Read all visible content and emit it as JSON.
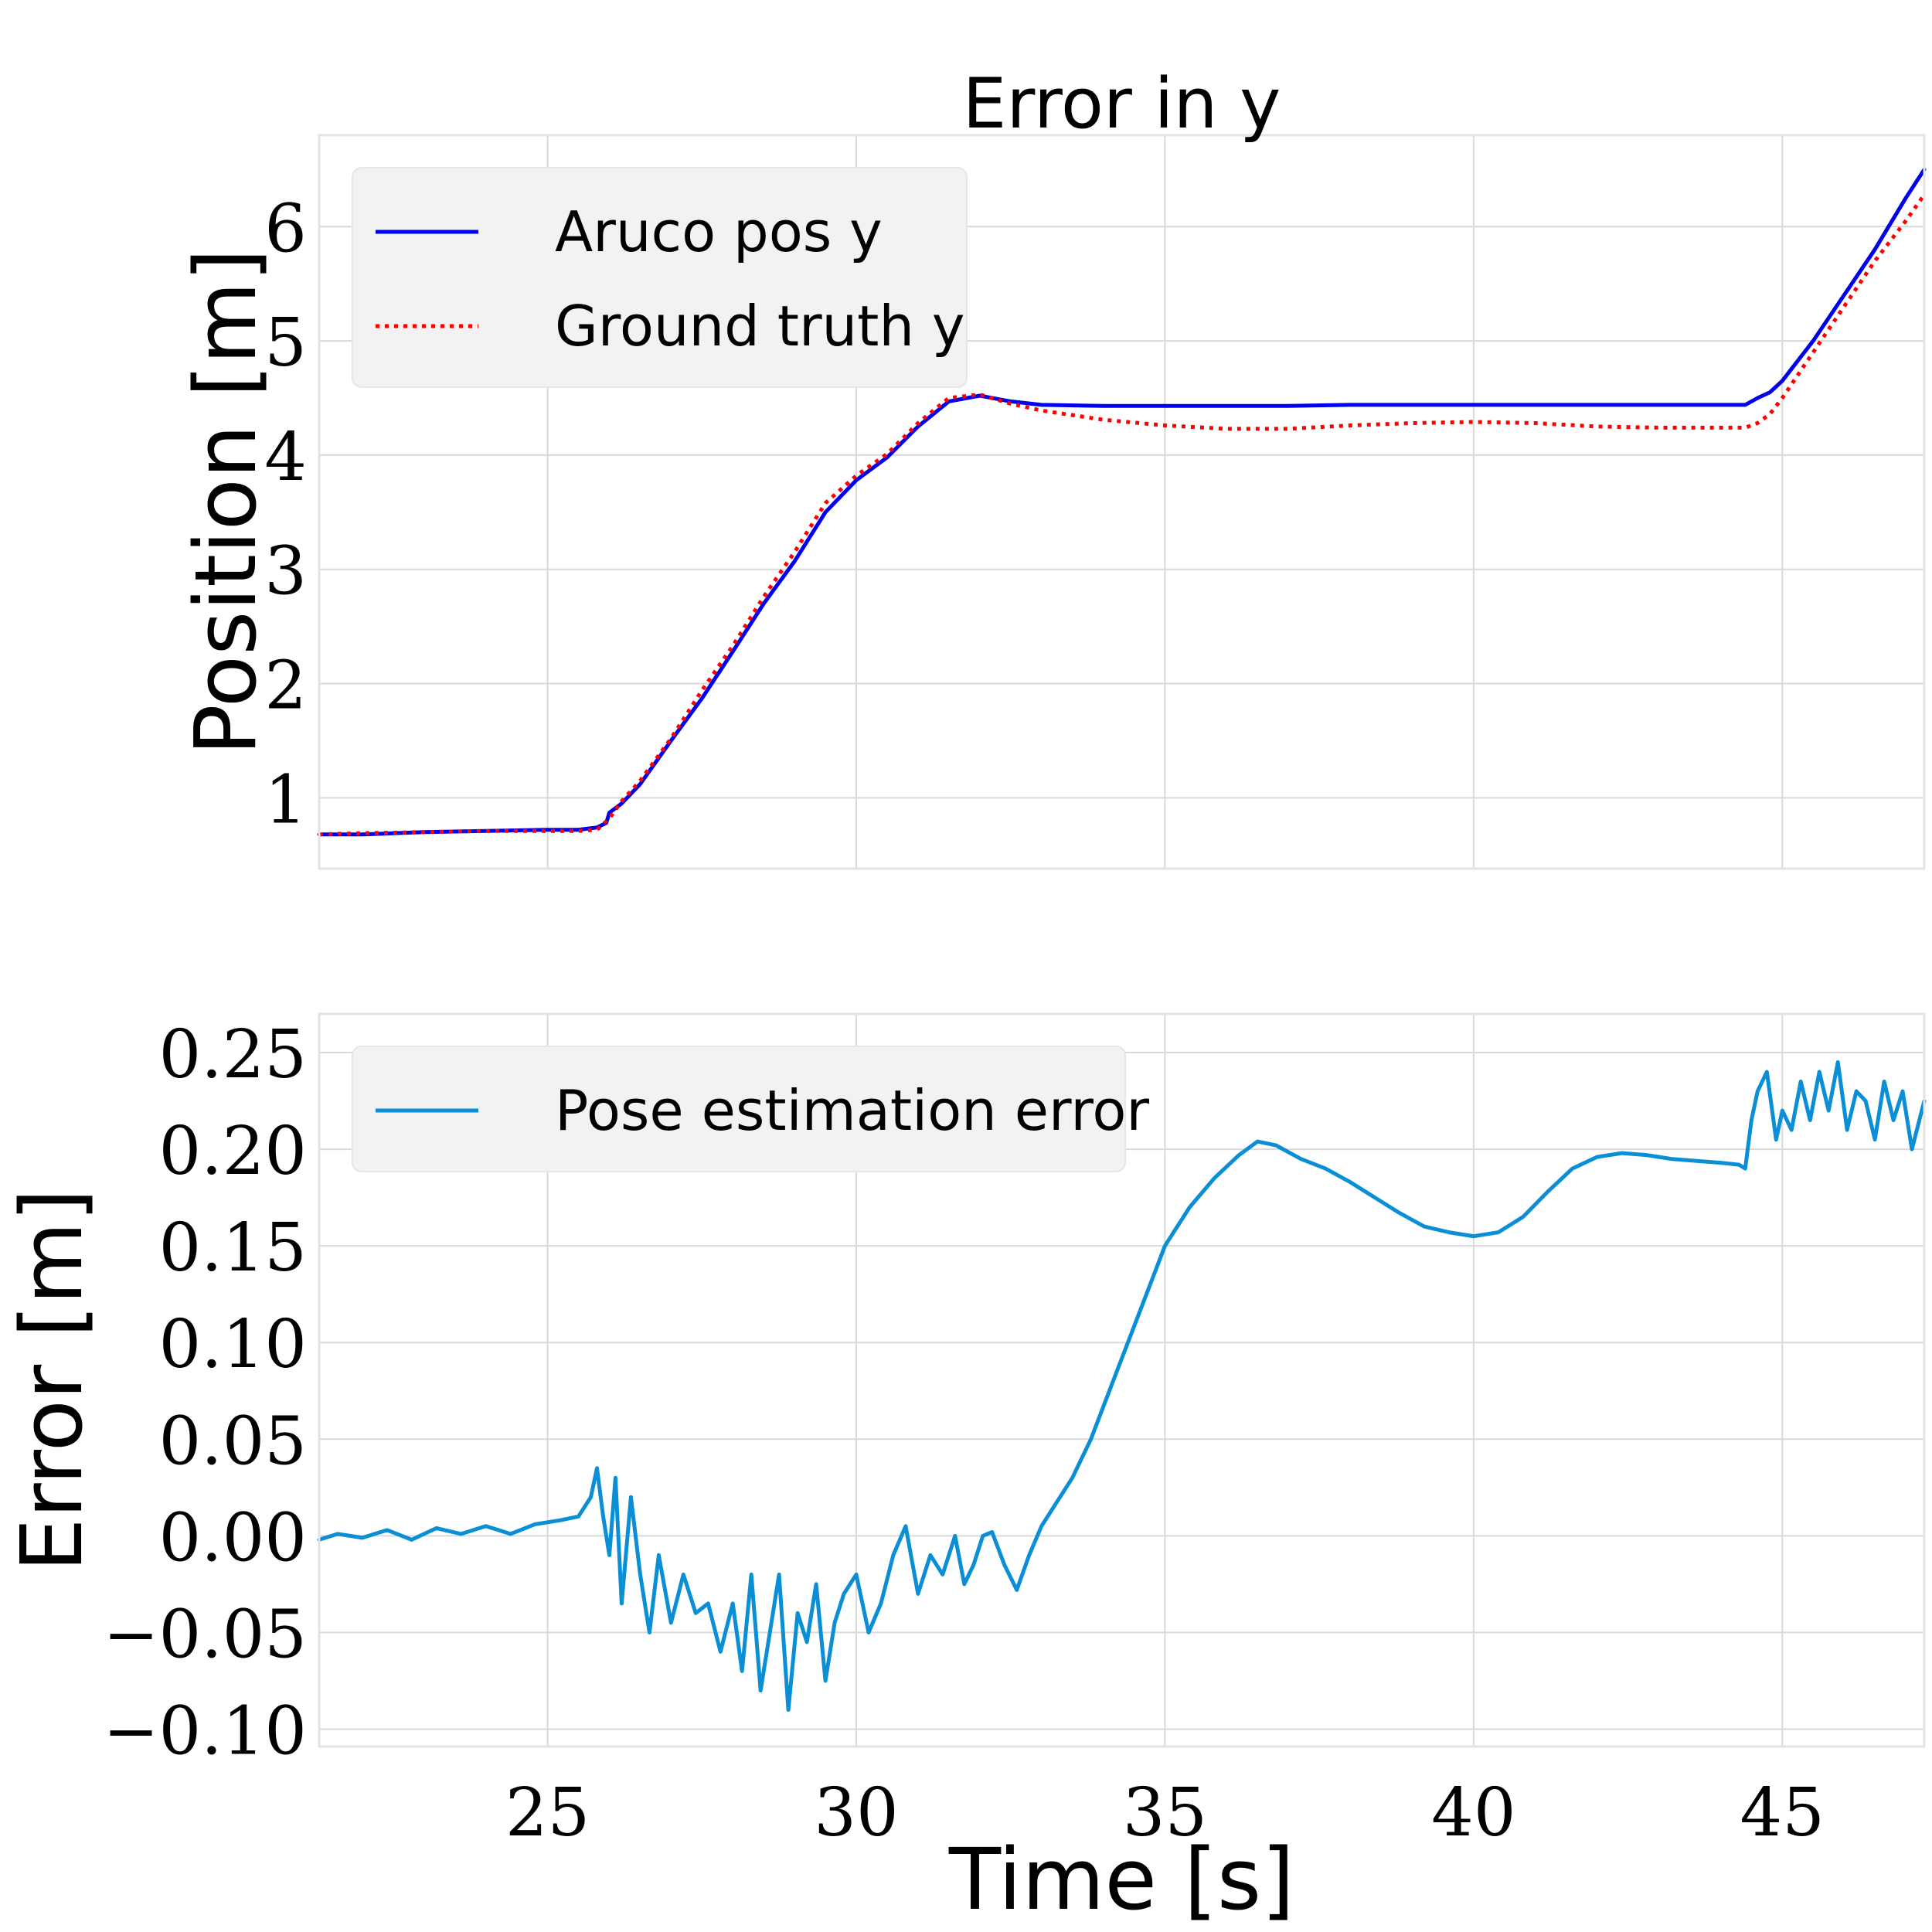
{
  "chart_data": [
    {
      "type": "line",
      "title": "Error in y",
      "xlabel": "",
      "ylabel": "Position [m]",
      "xlim": [
        21.3,
        47.3
      ],
      "ylim": [
        0.38,
        6.8
      ],
      "xticks": [
        25,
        30,
        35,
        40,
        45
      ],
      "yticks": [
        1,
        2,
        3,
        4,
        5,
        6
      ],
      "ytick_labels": [
        "1",
        "2",
        "3",
        "4",
        "5",
        "6"
      ],
      "grid": true,
      "legend": "top-left",
      "series": [
        {
          "name": "Aruco pos y",
          "color": "#0000ee",
          "style": "solid",
          "x": [
            21.3,
            22,
            23,
            24,
            25,
            25.5,
            25.8,
            25.95,
            26.0,
            26.2,
            26.5,
            27.0,
            27.5,
            28.0,
            28.5,
            29.0,
            29.5,
            30.0,
            30.5,
            31.0,
            31.5,
            32.0,
            32.5,
            33.0,
            34.0,
            35.0,
            36.0,
            37.0,
            38.0,
            39.0,
            40.0,
            41.0,
            42.0,
            43.0,
            44.0,
            44.4,
            44.6,
            44.8,
            45.0,
            45.5,
            46.0,
            46.5,
            47.0,
            47.3
          ],
          "values": [
            0.68,
            0.68,
            0.7,
            0.71,
            0.72,
            0.72,
            0.74,
            0.78,
            0.87,
            0.95,
            1.12,
            1.5,
            1.87,
            2.28,
            2.7,
            3.07,
            3.5,
            3.78,
            3.98,
            4.25,
            4.47,
            4.52,
            4.47,
            4.44,
            4.43,
            4.43,
            4.43,
            4.43,
            4.44,
            4.44,
            4.44,
            4.44,
            4.44,
            4.44,
            4.44,
            4.44,
            4.5,
            4.55,
            4.65,
            5.0,
            5.4,
            5.8,
            6.25,
            6.5
          ]
        },
        {
          "name": "Ground truth y",
          "color": "#ff0000",
          "style": "dotted",
          "x": [
            21.3,
            22,
            23,
            24,
            25,
            25.5,
            25.8,
            26.0,
            26.2,
            26.5,
            27.0,
            27.5,
            28.0,
            28.5,
            29.0,
            29.5,
            30.0,
            30.5,
            31.0,
            31.5,
            32.0,
            32.5,
            33.0,
            34.0,
            35.0,
            36.0,
            37.0,
            38.0,
            39.0,
            40.0,
            41.0,
            42.0,
            43.0,
            44.0,
            44.4,
            44.6,
            44.8,
            45.0,
            45.5,
            46.0,
            46.5,
            47.0,
            47.3
          ],
          "values": [
            0.68,
            0.69,
            0.7,
            0.71,
            0.71,
            0.71,
            0.72,
            0.82,
            0.97,
            1.15,
            1.52,
            1.94,
            2.33,
            2.76,
            3.15,
            3.58,
            3.82,
            4.01,
            4.28,
            4.5,
            4.53,
            4.45,
            4.39,
            4.31,
            4.26,
            4.23,
            4.23,
            4.26,
            4.28,
            4.29,
            4.28,
            4.25,
            4.24,
            4.24,
            4.24,
            4.28,
            4.36,
            4.5,
            4.9,
            5.3,
            5.7,
            6.05,
            6.28
          ]
        }
      ]
    },
    {
      "type": "line",
      "title": "",
      "xlabel": "Time [s]",
      "ylabel": "Error [m]",
      "xlim": [
        21.3,
        47.3
      ],
      "ylim": [
        -0.109,
        0.27
      ],
      "xticks": [
        25,
        30,
        35,
        40,
        45
      ],
      "xtick_labels": [
        "25",
        "30",
        "35",
        "40",
        "45"
      ],
      "yticks": [
        -0.1,
        -0.05,
        0.0,
        0.05,
        0.1,
        0.15,
        0.2,
        0.25
      ],
      "ytick_labels": [
        "−0.10",
        "−0.05",
        "0.00",
        "0.05",
        "0.10",
        "0.15",
        "0.20",
        "0.25"
      ],
      "grid": true,
      "legend": "top-left",
      "series": [
        {
          "name": "Pose estimation error",
          "color": "#0a8fd6",
          "style": "solid",
          "x": [
            21.3,
            21.6,
            22.0,
            22.4,
            22.8,
            23.2,
            23.6,
            24.0,
            24.4,
            24.8,
            25.2,
            25.5,
            25.7,
            25.8,
            25.9,
            26.0,
            26.1,
            26.2,
            26.35,
            26.5,
            26.65,
            26.8,
            27.0,
            27.2,
            27.4,
            27.6,
            27.8,
            28.0,
            28.15,
            28.3,
            28.45,
            28.6,
            28.75,
            28.9,
            29.05,
            29.2,
            29.35,
            29.5,
            29.65,
            29.8,
            30.0,
            30.2,
            30.4,
            30.6,
            30.8,
            31.0,
            31.2,
            31.4,
            31.6,
            31.75,
            31.9,
            32.05,
            32.2,
            32.4,
            32.6,
            32.8,
            33.0,
            33.2,
            33.5,
            33.8,
            34.1,
            34.4,
            34.7,
            35.0,
            35.4,
            35.8,
            36.2,
            36.5,
            36.8,
            37.2,
            37.6,
            38.0,
            38.4,
            38.8,
            39.2,
            39.6,
            40.0,
            40.4,
            40.8,
            41.2,
            41.6,
            42.0,
            42.4,
            42.8,
            43.2,
            43.6,
            44.0,
            44.3,
            44.4,
            44.5,
            44.6,
            44.75,
            44.9,
            45.0,
            45.15,
            45.3,
            45.45,
            45.6,
            45.75,
            45.9,
            46.05,
            46.2,
            46.35,
            46.5,
            46.65,
            46.8,
            46.95,
            47.1,
            47.3
          ],
          "values": [
            -0.002,
            0.001,
            -0.001,
            0.003,
            -0.002,
            0.004,
            0.001,
            0.005,
            0.001,
            0.006,
            0.008,
            0.01,
            0.02,
            0.035,
            0.01,
            -0.01,
            0.03,
            -0.035,
            0.02,
            -0.02,
            -0.05,
            -0.01,
            -0.045,
            -0.02,
            -0.04,
            -0.035,
            -0.06,
            -0.035,
            -0.07,
            -0.02,
            -0.08,
            -0.05,
            -0.02,
            -0.09,
            -0.04,
            -0.055,
            -0.025,
            -0.075,
            -0.045,
            -0.03,
            -0.02,
            -0.05,
            -0.035,
            -0.01,
            0.005,
            -0.03,
            -0.01,
            -0.02,
            0.0,
            -0.025,
            -0.015,
            0.0,
            0.002,
            -0.015,
            -0.028,
            -0.01,
            0.005,
            0.015,
            0.03,
            0.05,
            0.075,
            0.1,
            0.125,
            0.15,
            0.17,
            0.185,
            0.197,
            0.204,
            0.202,
            0.195,
            0.19,
            0.183,
            0.175,
            0.167,
            0.16,
            0.157,
            0.155,
            0.157,
            0.165,
            0.178,
            0.19,
            0.196,
            0.198,
            0.197,
            0.195,
            0.194,
            0.193,
            0.192,
            0.19,
            0.215,
            0.23,
            0.24,
            0.205,
            0.22,
            0.21,
            0.235,
            0.215,
            0.24,
            0.22,
            0.245,
            0.21,
            0.23,
            0.225,
            0.205,
            0.235,
            0.215,
            0.23,
            0.2,
            0.225
          ]
        }
      ]
    }
  ]
}
